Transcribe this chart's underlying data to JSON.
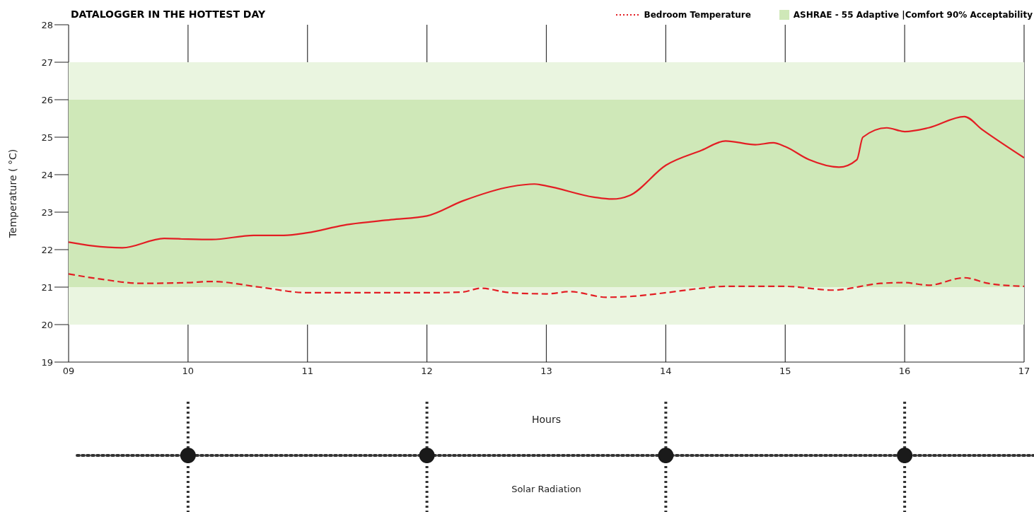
{
  "chart_data": {
    "type": "line",
    "title": "DATALOGGER  IN THE HOTTEST DAY",
    "xlabel": "Hours",
    "ylabel": "Temperature ( °C)",
    "xlim": [
      9,
      17
    ],
    "xticks": [
      {
        "value": 9,
        "label": "09"
      },
      10,
      11,
      12,
      13,
      14,
      15,
      16,
      17
    ],
    "ylim": [
      19,
      28
    ],
    "yticks": [
      19,
      20,
      21,
      22,
      23,
      24,
      25,
      26,
      27,
      28
    ],
    "grid": "x",
    "legend": "top right",
    "marker": "none",
    "series": [
      {
        "color": "#e31e24",
        "line_style": "solid",
        "x": [
          9.0,
          9.2,
          9.45,
          9.8,
          10.0,
          10.2,
          10.55,
          10.8,
          11.0,
          11.3,
          11.7,
          12.0,
          12.3,
          12.7,
          12.9,
          13.0,
          13.4,
          13.55,
          13.7,
          14.0,
          14.3,
          14.5,
          14.75,
          14.9,
          15.0,
          15.2,
          15.45,
          15.6,
          15.65,
          15.85,
          16.0,
          16.2,
          16.5,
          16.65,
          17.0
        ],
        "values": [
          22.2,
          22.1,
          22.05,
          22.3,
          22.28,
          22.27,
          22.38,
          22.38,
          22.45,
          22.65,
          22.8,
          22.9,
          23.3,
          23.68,
          23.75,
          23.7,
          23.4,
          23.35,
          23.45,
          24.25,
          24.65,
          24.9,
          24.8,
          24.85,
          24.75,
          24.4,
          24.2,
          24.4,
          25.0,
          25.25,
          25.15,
          25.25,
          25.55,
          25.2,
          24.45
        ]
      },
      {
        "name": "Bedroom Temperature",
        "color": "#e31e24",
        "line_style": "dashed",
        "x": [
          9.0,
          9.3,
          9.6,
          10.0,
          10.2,
          10.6,
          11.0,
          11.5,
          12.0,
          12.3,
          12.45,
          12.7,
          13.0,
          13.2,
          13.5,
          13.7,
          14.0,
          14.3,
          14.5,
          15.0,
          15.4,
          15.8,
          16.0,
          16.2,
          16.5,
          16.7,
          17.0
        ],
        "values": [
          21.35,
          21.2,
          21.1,
          21.12,
          21.15,
          21.0,
          20.85,
          20.85,
          20.85,
          20.87,
          20.97,
          20.85,
          20.82,
          20.88,
          20.73,
          20.75,
          20.85,
          20.97,
          21.02,
          21.02,
          20.92,
          21.1,
          21.12,
          21.05,
          21.25,
          21.1,
          21.02
        ]
      }
    ],
    "bands": [
      {
        "axis": "y",
        "from": 20,
        "to": 27,
        "color": "#eaf5e0"
      },
      {
        "axis": "y",
        "from": 21,
        "to": 26,
        "color": "#cfe8b8",
        "label": "ASHRAE - 55 Adaptive |Comfort 90% Acceptability"
      }
    ],
    "annotations": [
      "Solar Radiation"
    ]
  }
}
